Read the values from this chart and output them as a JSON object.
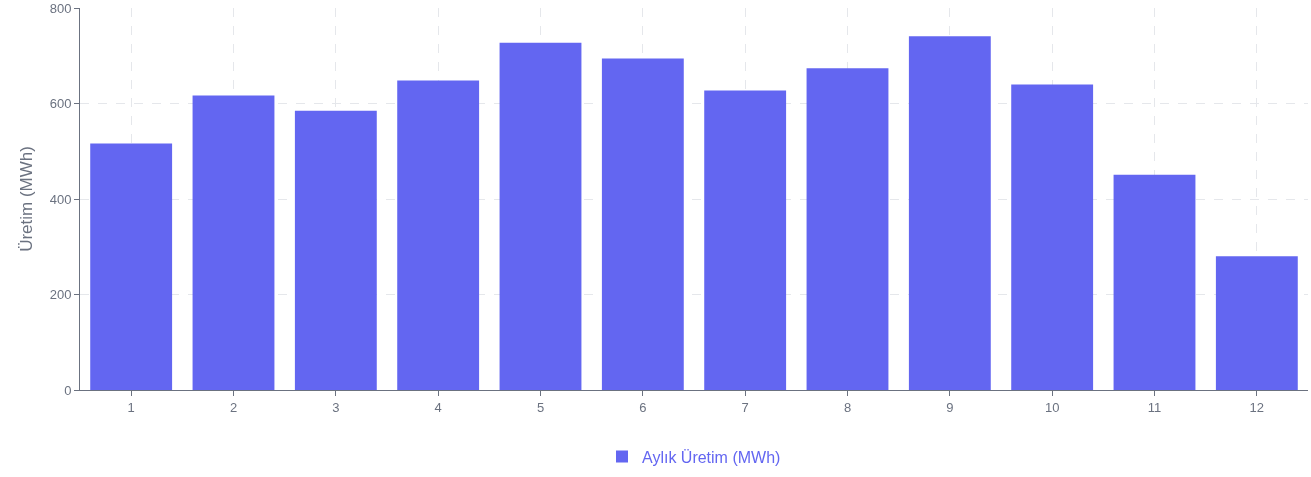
{
  "chart_data": {
    "type": "bar",
    "ylabel": "Üretim (MWh)",
    "categories": [
      "1",
      "2",
      "3",
      "4",
      "5",
      "6",
      "7",
      "8",
      "9",
      "10",
      "11",
      "12"
    ],
    "series": [
      {
        "name": "Aylık Üretim (MWh)",
        "color": "#6366f1",
        "values": [
          516,
          617,
          585,
          648,
          727,
          694,
          627,
          674,
          741,
          640,
          451,
          280
        ]
      }
    ],
    "ylim": [
      0,
      800
    ],
    "yticks": [
      0,
      200,
      400,
      600,
      800
    ],
    "grid": true,
    "legend": "bottom"
  }
}
